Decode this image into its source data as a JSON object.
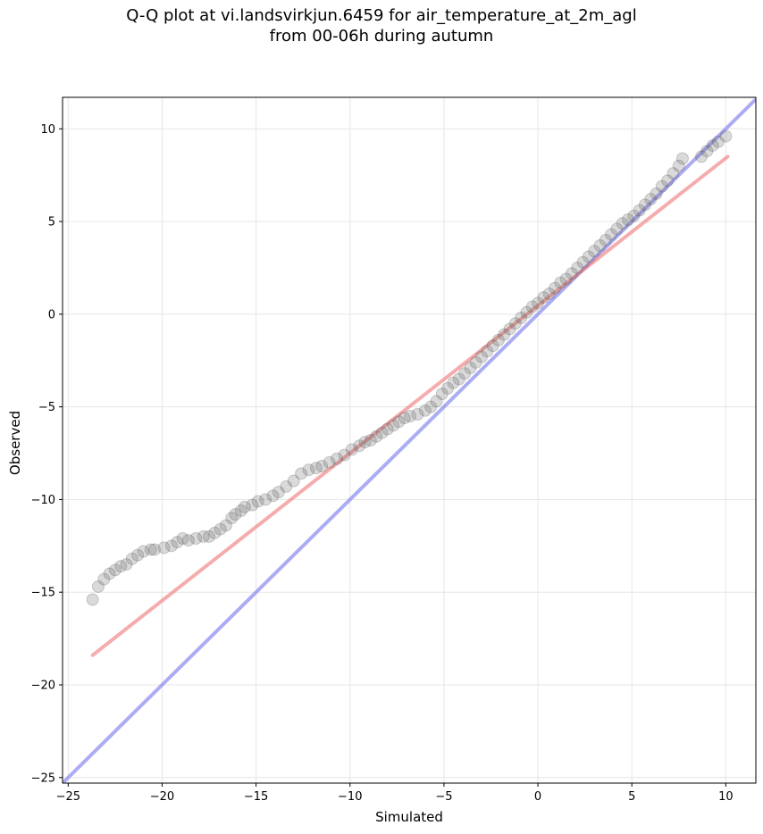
{
  "chart_data": {
    "type": "scatter",
    "title": "Q-Q plot at vi.landsvirkjun.6459 for air_temperature_at_2m_agl",
    "subtitle": "from 00-06h during autumn",
    "xlabel": "Simulated",
    "ylabel": "Observed",
    "xlim": [
      -25.3,
      11.6
    ],
    "ylim": [
      -25.3,
      11.7
    ],
    "xticks": [
      -25,
      -20,
      -15,
      -10,
      -5,
      0,
      5,
      10
    ],
    "yticks": [
      -25,
      -20,
      -15,
      -10,
      -5,
      0,
      5,
      10
    ],
    "xtick_labels": [
      "−25",
      "−20",
      "−15",
      "−10",
      "−5",
      "0",
      "5",
      "10"
    ],
    "ytick_labels": [
      "−25",
      "−20",
      "−15",
      "−10",
      "−5",
      "0",
      "5",
      "10"
    ],
    "grid": true,
    "colors": {
      "points": "#555555",
      "fit_line": "#f08080",
      "identity_line": "#8080f0"
    },
    "identity_line": {
      "x": [
        -25.3,
        11.6
      ],
      "y": [
        -25.3,
        11.6
      ]
    },
    "fit_line": {
      "x": [
        -23.7,
        10.1
      ],
      "y": [
        -18.4,
        8.5
      ]
    },
    "series": [
      {
        "x": [
          -23.7,
          -23.4,
          -23.1,
          -22.8,
          -22.5,
          -22.2,
          -21.9,
          -21.6,
          -21.3,
          -21.0,
          -20.6,
          -20.4,
          -19.9,
          -19.5,
          -19.2,
          -18.9,
          -18.6,
          -18.2,
          -17.8,
          -17.5,
          -17.2,
          -16.9,
          -16.6,
          -16.3,
          -16.1,
          -15.8,
          -15.6,
          -15.2,
          -14.9,
          -14.5,
          -14.1,
          -13.8,
          -13.4,
          -13.0,
          -12.6,
          -12.2,
          -11.8,
          -11.5,
          -11.1,
          -10.7,
          -10.3,
          -9.9,
          -9.5,
          -9.2,
          -8.9,
          -8.6,
          -8.3,
          -8.0,
          -7.7,
          -7.4,
          -7.1,
          -6.8,
          -6.4,
          -6.0,
          -5.7,
          -5.4,
          -5.1,
          -4.8,
          -4.5,
          -4.2,
          -3.9,
          -3.6,
          -3.3,
          -3.0,
          -2.7,
          -2.4,
          -2.1,
          -1.8,
          -1.5,
          -1.2,
          -0.9,
          -0.6,
          -0.3,
          0.0,
          0.3,
          0.6,
          0.9,
          1.2,
          1.5,
          1.8,
          2.1,
          2.4,
          2.7,
          3.0,
          3.3,
          3.6,
          3.9,
          4.2,
          4.5,
          4.8,
          5.1,
          5.4,
          5.7,
          6.0,
          6.3,
          6.6,
          6.9,
          7.2,
          7.5,
          7.7,
          8.7,
          9.0,
          9.3,
          9.6,
          10.0
        ],
        "y": [
          -15.4,
          -14.7,
          -14.3,
          -14.0,
          -13.8,
          -13.6,
          -13.5,
          -13.2,
          -13.0,
          -12.8,
          -12.7,
          -12.7,
          -12.6,
          -12.5,
          -12.3,
          -12.1,
          -12.2,
          -12.1,
          -12.0,
          -12.0,
          -11.8,
          -11.6,
          -11.4,
          -11.0,
          -10.8,
          -10.6,
          -10.4,
          -10.3,
          -10.1,
          -10.0,
          -9.8,
          -9.6,
          -9.3,
          -9.0,
          -8.6,
          -8.4,
          -8.3,
          -8.2,
          -8.0,
          -7.8,
          -7.6,
          -7.3,
          -7.1,
          -6.9,
          -6.8,
          -6.6,
          -6.4,
          -6.2,
          -6.0,
          -5.8,
          -5.6,
          -5.5,
          -5.4,
          -5.2,
          -5.0,
          -4.7,
          -4.3,
          -4.0,
          -3.7,
          -3.5,
          -3.2,
          -2.9,
          -2.6,
          -2.3,
          -2.0,
          -1.7,
          -1.4,
          -1.1,
          -0.8,
          -0.5,
          -0.2,
          0.1,
          0.4,
          0.6,
          0.9,
          1.1,
          1.4,
          1.7,
          1.9,
          2.2,
          2.5,
          2.8,
          3.1,
          3.4,
          3.7,
          4.0,
          4.3,
          4.6,
          4.9,
          5.1,
          5.3,
          5.6,
          5.9,
          6.2,
          6.5,
          6.9,
          7.2,
          7.6,
          8.0,
          8.4,
          8.5,
          8.8,
          9.1,
          9.3,
          9.6
        ]
      }
    ]
  }
}
